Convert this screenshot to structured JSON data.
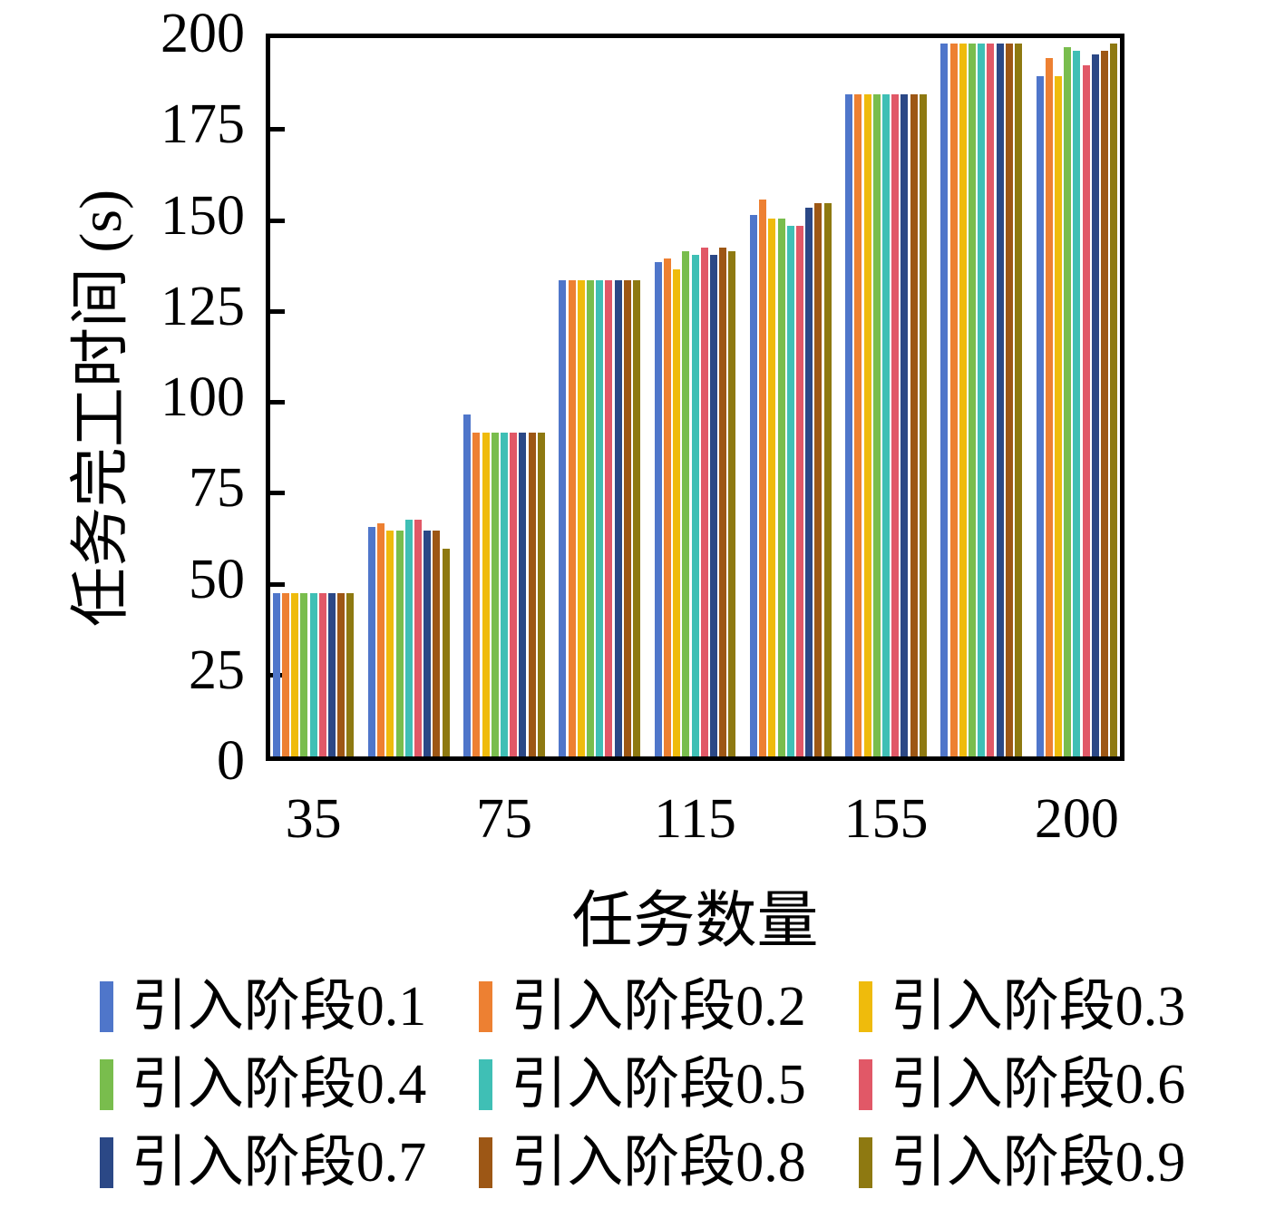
{
  "chart_data": {
    "type": "bar",
    "title": "",
    "xlabel": "任务数量",
    "ylabel": "任务完工时间 (s)",
    "ylim": [
      0,
      200
    ],
    "yticks": [
      0,
      25,
      50,
      75,
      100,
      125,
      150,
      175,
      200
    ],
    "x_tick_labels": [
      "35",
      "",
      "75",
      "",
      "115",
      "",
      "155",
      "",
      "200"
    ],
    "n_groups": 9,
    "grid": "off",
    "legend_position": "bottom",
    "legend_rows": 3,
    "axis_color": "#000000",
    "background_color": "#ffffff",
    "series": [
      {
        "name": "引入阶段0.1",
        "color": "#4F76CA",
        "values": [
          45,
          63,
          94,
          131,
          136,
          149,
          182,
          196,
          187
        ]
      },
      {
        "name": "引入阶段0.2",
        "color": "#ED8032",
        "values": [
          45,
          64,
          89,
          131,
          137,
          153,
          182,
          196,
          192
        ]
      },
      {
        "name": "引入阶段0.3",
        "color": "#EFBB0C",
        "values": [
          45,
          62,
          89,
          131,
          134,
          148,
          182,
          196,
          187
        ]
      },
      {
        "name": "引入阶段0.4",
        "color": "#79BD4D",
        "values": [
          45,
          62,
          89,
          131,
          139,
          148,
          182,
          196,
          195
        ]
      },
      {
        "name": "引入阶段0.5",
        "color": "#3FBFB5",
        "values": [
          45,
          65,
          89,
          131,
          138,
          146,
          182,
          196,
          194
        ]
      },
      {
        "name": "引入阶段0.6",
        "color": "#E15867",
        "values": [
          45,
          65,
          89,
          131,
          140,
          146,
          182,
          196,
          190
        ]
      },
      {
        "name": "引入阶段0.7",
        "color": "#2B4886",
        "values": [
          45,
          62,
          89,
          131,
          138,
          151,
          182,
          196,
          193
        ]
      },
      {
        "name": "引入阶段0.8",
        "color": "#9D5715",
        "values": [
          45,
          62,
          89,
          131,
          140,
          152,
          182,
          196,
          194
        ]
      },
      {
        "name": "引入阶段0.9",
        "color": "#8E7911",
        "values": [
          45,
          57,
          89,
          131,
          139,
          152,
          182,
          196,
          196
        ]
      }
    ]
  }
}
